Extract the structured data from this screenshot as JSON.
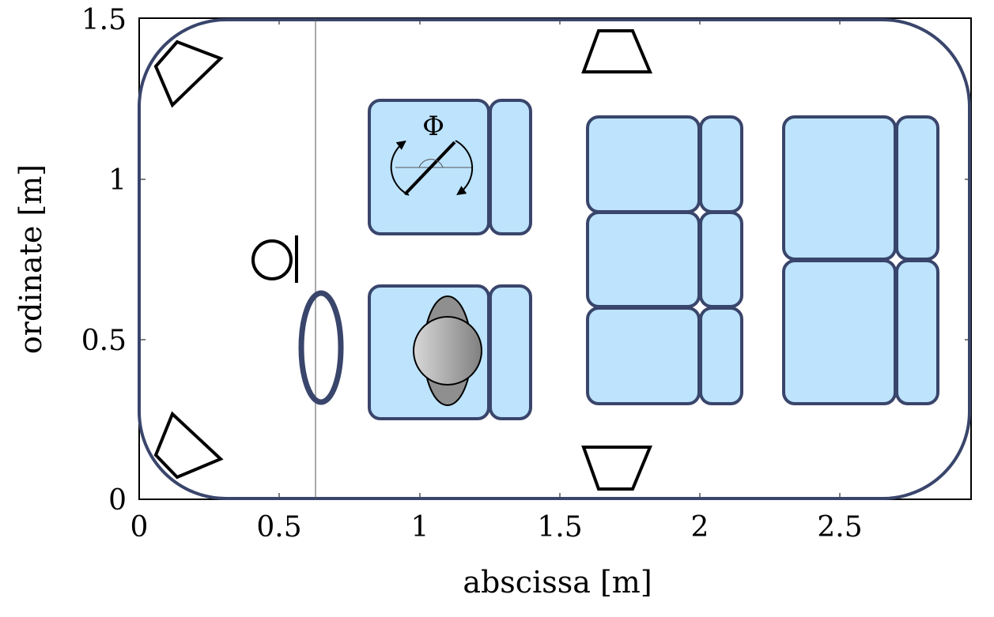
{
  "figure": {
    "xlabel": "abscissa [m]",
    "ylabel": "ordinate [m]",
    "xlim": [
      0,
      3
    ],
    "ylim": [
      0,
      1.5
    ],
    "x_ticks": [
      "0",
      "0.5",
      "1",
      "1.5",
      "2",
      "2.5"
    ],
    "y_ticks": [
      "0",
      "0.5",
      "1",
      "1.5"
    ],
    "angle_label": "Φ",
    "colors": {
      "seat_fill": "#bde3fd",
      "outline": "#39456b",
      "head_gradient": [
        "#d8d8d8",
        "#808080"
      ]
    }
  }
}
